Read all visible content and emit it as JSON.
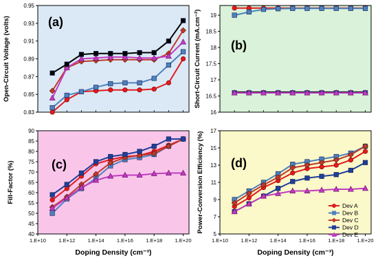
{
  "colors": {
    "A": "#e31a1c",
    "B": "#4f81bd",
    "C": "#c0392b",
    "D": "#1f3f99",
    "E": "#c03cc0",
    "top_line_a": "#000000",
    "top_line_b": "#000000",
    "panel_a_bg": "#dbe9f6",
    "panel_b_bg": "#d9f2d9",
    "panel_c_bg": "#f9c6ea",
    "panel_d_bg": "#fbf8c9"
  },
  "legend": {
    "position": "lower-right of panel (d)",
    "entries": [
      "Dev A",
      "Dev B",
      "Dev C",
      "Dev D",
      "Dev E"
    ]
  },
  "chart_data": [
    {
      "panel": "(a)",
      "type": "line",
      "title": "",
      "xlabel": "",
      "ylabel": "Open-Circuit Voltage (volts)",
      "ylim": [
        0.83,
        0.95
      ],
      "yticks": [
        "0.83",
        "0.85",
        "0.87",
        "0.89",
        "0.91",
        "0.93",
        "0.95"
      ],
      "x_log": [
        11,
        12,
        13,
        14,
        15,
        16,
        17,
        18,
        19,
        20
      ],
      "series": [
        {
          "key": "A",
          "marker": "circle",
          "values": [
            0.83,
            0.844,
            0.853,
            0.854,
            0.855,
            0.855,
            0.855,
            0.856,
            0.863,
            0.89
          ]
        },
        {
          "key": "B",
          "marker": "square",
          "values": [
            0.835,
            0.849,
            0.853,
            0.858,
            0.862,
            0.863,
            0.863,
            0.868,
            0.883,
            0.898
          ]
        },
        {
          "key": "C",
          "marker": "diamond",
          "values": [
            0.854,
            0.88,
            0.887,
            0.888,
            0.889,
            0.889,
            0.889,
            0.889,
            0.896,
            0.922
          ]
        },
        {
          "key": "E",
          "marker": "triangle",
          "values": [
            0.846,
            0.88,
            0.89,
            0.891,
            0.892,
            0.892,
            0.891,
            0.891,
            0.893,
            0.909
          ]
        },
        {
          "key": "top_line_a",
          "marker": "square",
          "values": [
            0.874,
            0.884,
            0.895,
            0.896,
            0.896,
            0.896,
            0.897,
            0.897,
            0.91,
            0.933
          ]
        }
      ]
    },
    {
      "panel": "(b)",
      "type": "line",
      "title": "",
      "xlabel": "",
      "ylabel": "Short-Circuit Current (mA.cm⁻²)",
      "ylim": [
        16,
        19.3
      ],
      "yticks": [
        "16",
        "16.5",
        "17",
        "17.5",
        "18",
        "18.5",
        "19"
      ],
      "x_log": [
        11,
        12,
        13,
        14,
        15,
        16,
        17,
        18,
        19,
        20
      ],
      "series": [
        {
          "key": "A",
          "marker": "circle",
          "values": [
            19.22,
            19.22,
            19.22,
            19.22,
            19.22,
            19.22,
            19.22,
            19.22,
            19.22,
            19.22
          ]
        },
        {
          "key": "B",
          "marker": "square",
          "values": [
            19.0,
            19.1,
            19.18,
            19.2,
            19.21,
            19.21,
            19.21,
            19.21,
            19.21,
            19.21
          ]
        },
        {
          "key": "top_line_b",
          "marker": "none",
          "values": [
            16.62,
            16.62,
            16.62,
            16.62,
            16.62,
            16.62,
            16.62,
            16.62,
            16.62,
            16.62
          ]
        },
        {
          "key": "D",
          "marker": "square",
          "values": [
            16.6,
            16.6,
            16.6,
            16.6,
            16.6,
            16.6,
            16.6,
            16.6,
            16.6,
            16.6
          ]
        },
        {
          "key": "E",
          "marker": "triangle",
          "values": [
            16.6,
            16.6,
            16.6,
            16.6,
            16.6,
            16.6,
            16.6,
            16.6,
            16.6,
            16.6
          ]
        }
      ]
    },
    {
      "panel": "(c)",
      "type": "line",
      "title": "",
      "xlabel": "Doping Density (cm⁻³)",
      "ylabel": "Fill-Factor (%)",
      "ylim": [
        40,
        90
      ],
      "yticks": [
        "40",
        "45",
        "50",
        "55",
        "60",
        "65",
        "70",
        "75",
        "80",
        "85",
        "90"
      ],
      "xticks": [
        "1.E+10",
        "1.E+12",
        "1.E+14",
        "1.E+16",
        "1.E+18",
        "1.E+20"
      ],
      "x_log": [
        11,
        12,
        13,
        14,
        15,
        16,
        17,
        18,
        19,
        20
      ],
      "series": [
        {
          "key": "A",
          "marker": "circle",
          "values": [
            56.5,
            62,
            68,
            74,
            76,
            77.5,
            78,
            80,
            83,
            86
          ]
        },
        {
          "key": "B",
          "marker": "square",
          "values": [
            50,
            57,
            62,
            67,
            73,
            76,
            77,
            78.5,
            82.5,
            86
          ]
        },
        {
          "key": "C",
          "marker": "diamond",
          "values": [
            53,
            58,
            64,
            69,
            74.5,
            77,
            78,
            79,
            82.5,
            86
          ]
        },
        {
          "key": "D",
          "marker": "square",
          "values": [
            59,
            64,
            69.5,
            75,
            77.5,
            78.5,
            80,
            82.5,
            86,
            86
          ]
        },
        {
          "key": "E",
          "marker": "triangle",
          "values": [
            52.5,
            57.5,
            62.5,
            66,
            68,
            68.5,
            68.5,
            69.2,
            69.5,
            69.5
          ]
        }
      ]
    },
    {
      "panel": "(d)",
      "type": "line",
      "title": "",
      "xlabel": "Doping Density (cm⁻³)",
      "ylabel": "Power-Conversion Efficiency (%)",
      "ylim": [
        5,
        17
      ],
      "yticks": [
        "5",
        "7",
        "9",
        "11",
        "13",
        "15",
        "17"
      ],
      "xticks": [
        "1.E+10",
        "1.E+12",
        "1.E+14",
        "1.E+16",
        "1.E+18",
        "1.E+20"
      ],
      "x_log": [
        11,
        12,
        13,
        14,
        15,
        16,
        17,
        18,
        19,
        20
      ],
      "series": [
        {
          "key": "A",
          "marker": "circle",
          "values": [
            8.2,
            9.2,
            10.4,
            11.2,
            12.1,
            12.6,
            12.8,
            13.0,
            13.6,
            14.6
          ]
        },
        {
          "key": "B",
          "marker": "square",
          "values": [
            9.0,
            10.0,
            11.0,
            12.0,
            13.1,
            13.4,
            13.7,
            14.0,
            14.4,
            15.2
          ]
        },
        {
          "key": "C",
          "marker": "diamond",
          "values": [
            8.6,
            9.7,
            10.7,
            11.6,
            12.7,
            13.0,
            13.3,
            13.6,
            14.2,
            15.2
          ]
        },
        {
          "key": "D",
          "marker": "square",
          "values": [
            7.6,
            8.5,
            9.4,
            10.3,
            11.1,
            11.5,
            11.7,
            11.9,
            12.4,
            13.3
          ]
        },
        {
          "key": "E",
          "marker": "triangle",
          "values": [
            7.6,
            8.5,
            9.4,
            9.7,
            10.0,
            10.0,
            10.1,
            10.2,
            10.2,
            10.3
          ]
        }
      ]
    }
  ]
}
